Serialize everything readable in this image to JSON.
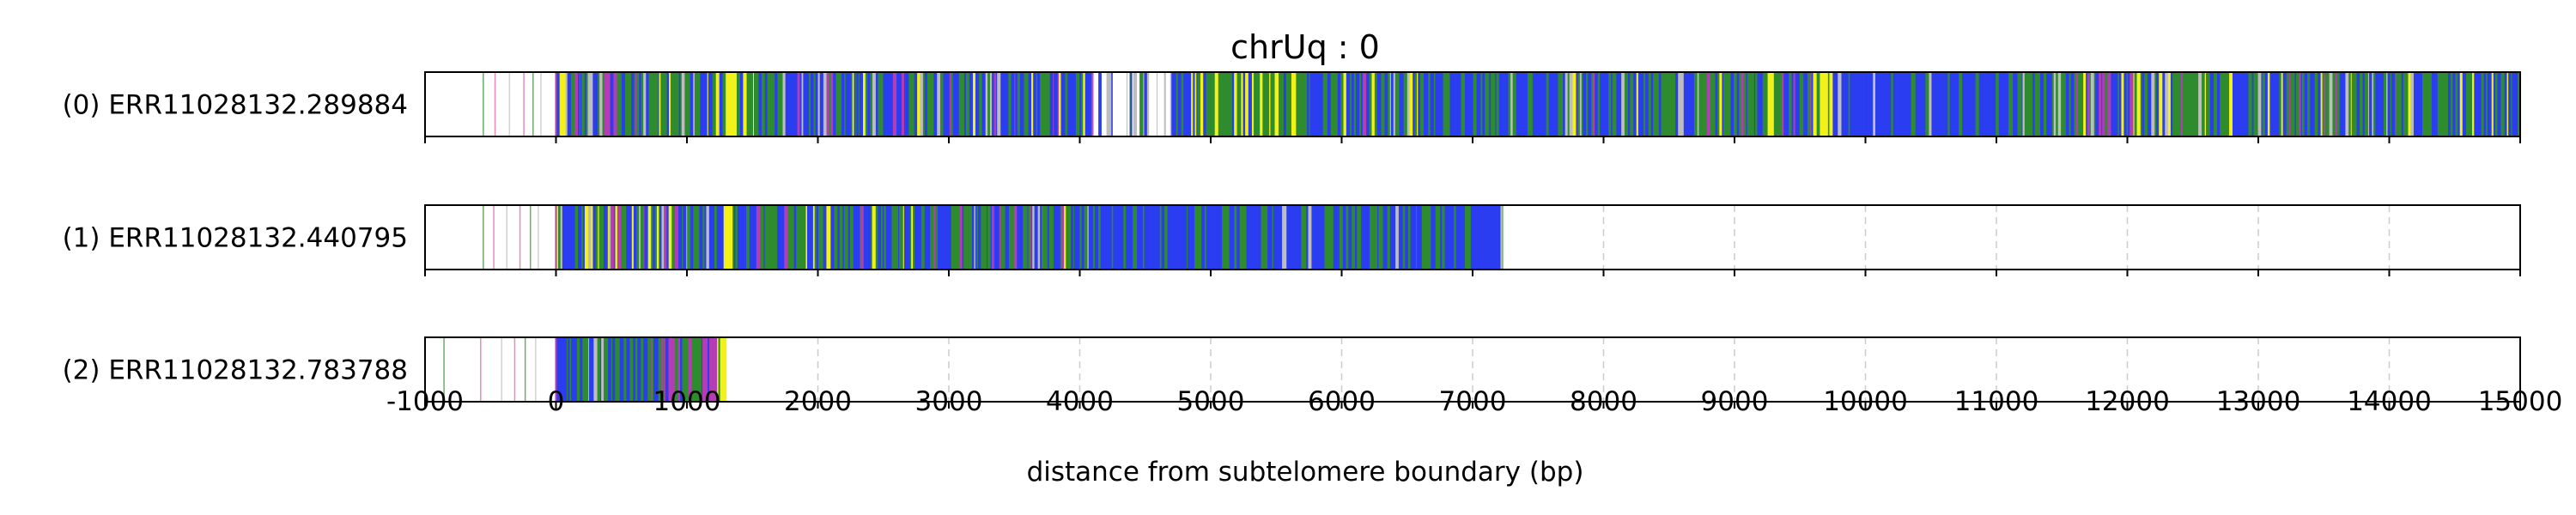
{
  "chart_data": {
    "type": "heatmap",
    "title": "chrUq : 0",
    "xlabel": "distance from subtelomere boundary (bp)",
    "ylabel": "",
    "xlim": [
      -1000,
      15000
    ],
    "x_ticks": [
      -1000,
      0,
      1000,
      2000,
      3000,
      4000,
      5000,
      6000,
      7000,
      8000,
      9000,
      10000,
      11000,
      12000,
      13000,
      14000,
      15000
    ],
    "grid": "vertical dashed",
    "legend": "none",
    "colors": {
      "blue": "#2b3df0",
      "green": "#2e8b2e",
      "yellow": "#f2f21a",
      "magenta": "#b43cb4",
      "pink": "#e05aa0",
      "grey": "#bdbdbd",
      "frame": "#000000",
      "grid": "#cccccc"
    },
    "tracks": [
      {
        "label": "(0) ERR11028132.289884",
        "read_end": 15000,
        "segments": [
          {
            "start": 0,
            "end": 1300,
            "pattern": "mixed"
          },
          {
            "start": 1300,
            "end": 1380,
            "pattern": "yellow"
          },
          {
            "start": 1380,
            "end": 4100,
            "pattern": "mixed"
          },
          {
            "start": 4100,
            "end": 4700,
            "pattern": "sparse"
          },
          {
            "start": 4700,
            "end": 4850,
            "pattern": "blue"
          },
          {
            "start": 4850,
            "end": 5700,
            "pattern": "yellowgreen"
          },
          {
            "start": 5700,
            "end": 6600,
            "pattern": "mixed"
          },
          {
            "start": 6600,
            "end": 7700,
            "pattern": "blue-green"
          },
          {
            "start": 7700,
            "end": 9600,
            "pattern": "mixed"
          },
          {
            "start": 9600,
            "end": 9750,
            "pattern": "yellow"
          },
          {
            "start": 9750,
            "end": 11200,
            "pattern": "blue"
          },
          {
            "start": 11200,
            "end": 12600,
            "pattern": "mixed"
          },
          {
            "start": 12600,
            "end": 14200,
            "pattern": "mixed"
          },
          {
            "start": 14200,
            "end": 15000,
            "pattern": "green-blue"
          }
        ],
        "prefix_marks": [
          -560,
          -470,
          -360,
          -250,
          -180,
          -120
        ]
      },
      {
        "label": "(1) ERR11028132.440795",
        "read_end": 7230,
        "segments": [
          {
            "start": 0,
            "end": 1280,
            "pattern": "mixed"
          },
          {
            "start": 1280,
            "end": 1360,
            "pattern": "yellow"
          },
          {
            "start": 1360,
            "end": 4000,
            "pattern": "mixed"
          },
          {
            "start": 4000,
            "end": 6900,
            "pattern": "blue-green"
          },
          {
            "start": 6900,
            "end": 7230,
            "pattern": "blue"
          }
        ],
        "prefix_marks": [
          -560,
          -480,
          -380,
          -280,
          -200,
          -140
        ]
      },
      {
        "label": "(2) ERR11028132.783788",
        "read_end": 1300,
        "segments": [
          {
            "start": 0,
            "end": 700,
            "pattern": "blue-green"
          },
          {
            "start": 700,
            "end": 1230,
            "pattern": "magenta-green"
          },
          {
            "start": 1230,
            "end": 1300,
            "pattern": "yellow"
          }
        ],
        "prefix_marks": [
          -860,
          -580,
          -420,
          -320,
          -240,
          -160
        ]
      }
    ]
  }
}
